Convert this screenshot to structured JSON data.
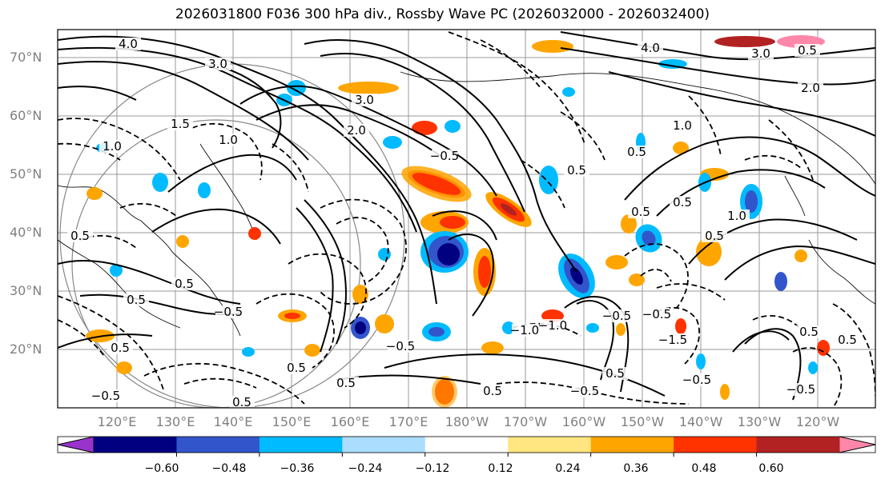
{
  "title": "2026031800 F036 300 hPa div., Rossby Wave PC (2026032000 - 2026032400)",
  "lat_labels": [
    "70°N",
    "60°N",
    "50°N",
    "40°N",
    "30°N",
    "20°N"
  ],
  "lon_labels": [
    "120°E",
    "130°E",
    "140°E",
    "150°E",
    "160°E",
    "170°E",
    "180°W",
    "170°W",
    "160°W",
    "150°W",
    "140°W",
    "130°W",
    "120°W"
  ],
  "colorbar": {
    "colors": [
      "#9933cc",
      "#000080",
      "#3355cc",
      "#00bbff",
      "#aaddff",
      "#ffffff",
      "#ffe680",
      "#ffa500",
      "#ff3300",
      "#b22222",
      "#ff88aa"
    ],
    "labels": [
      "−0.60",
      "−0.48",
      "−0.36",
      "−0.24",
      "−0.12",
      "0.12",
      "0.24",
      "0.36",
      "0.48",
      "0.60"
    ]
  },
  "contour_labels": [
    "3.0",
    "3.0",
    "4.0",
    "2.0",
    "1.0",
    "0.5",
    "1.5",
    "1.0",
    "0.5",
    "0.5",
    "0.5",
    "0.5",
    "−0.5",
    "−1.0",
    "−0.5",
    "−0.5",
    "−1.5",
    "0.5",
    "0.5",
    "−0.5",
    "0.5",
    "−0.5",
    "0.5",
    "−1.0",
    "0.5",
    "−0.5",
    "4.0",
    "3.0",
    "2.0",
    "1.0",
    "0.5",
    "−0.5",
    "0.5",
    "0.5",
    "−0.5",
    "1.0",
    "0.5",
    "0.5",
    "0.5",
    "−0.5",
    "0.5"
  ]
}
